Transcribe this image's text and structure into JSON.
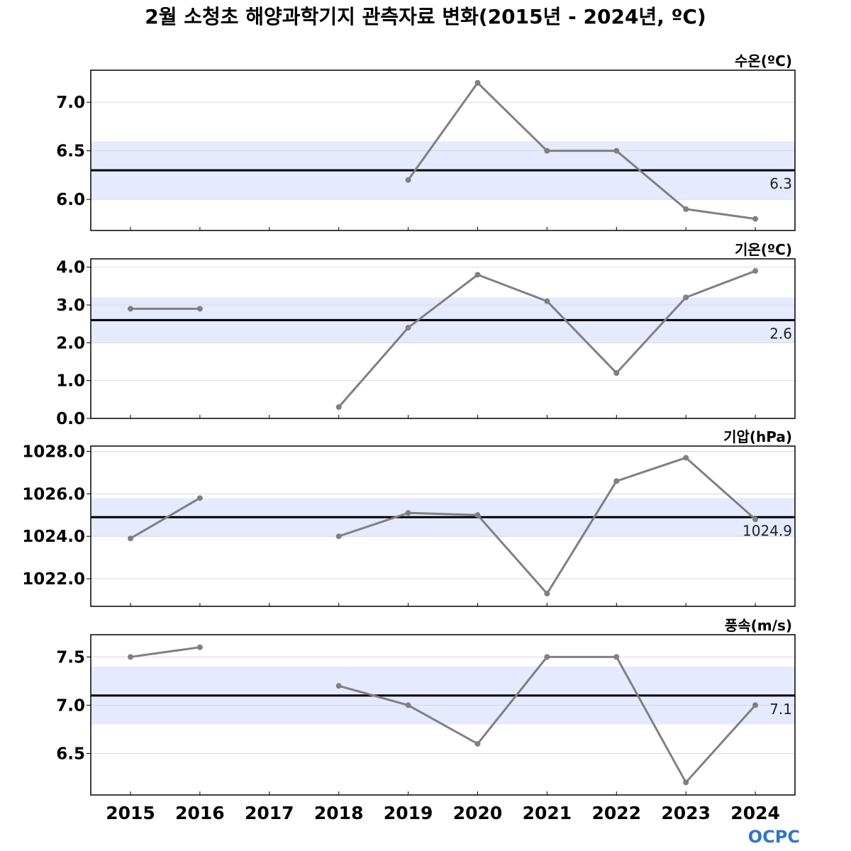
{
  "title": "2월 소청초 해양과학기지 관측자료 변화(2015년 - 2024년, ºC)",
  "logo": "OCPC",
  "colors": {
    "series_line": "#808080",
    "mean_line": "#000000",
    "band": "#e6eaff",
    "grid": "#d9d9d9"
  },
  "chart_data": [
    {
      "type": "line",
      "unit_label": "수온(ºC)",
      "x": [
        2015,
        2016,
        2017,
        2018,
        2019,
        2020,
        2021,
        2022,
        2023,
        2024
      ],
      "values": [
        null,
        null,
        null,
        null,
        6.2,
        7.2,
        6.5,
        6.5,
        5.9,
        5.8
      ],
      "mean": 6.3,
      "mean_label": "6.3",
      "band": [
        6.0,
        6.6
      ],
      "ylim": [
        5.68,
        7.33
      ],
      "yticks": [
        6.0,
        6.5,
        7.0
      ],
      "ytick_labels": [
        "6.0",
        "6.5",
        "7.0"
      ],
      "grid": true
    },
    {
      "type": "line",
      "unit_label": "기온(ºC)",
      "x": [
        2015,
        2016,
        2017,
        2018,
        2019,
        2020,
        2021,
        2022,
        2023,
        2024
      ],
      "values": [
        2.9,
        2.9,
        null,
        0.3,
        2.4,
        3.8,
        3.1,
        1.2,
        3.2,
        3.9
      ],
      "mean": 2.6,
      "mean_label": "2.6",
      "band": [
        2.0,
        3.2
      ],
      "ylim": [
        0.0,
        4.22
      ],
      "yticks": [
        0.0,
        1.0,
        2.0,
        3.0,
        4.0
      ],
      "ytick_labels": [
        "0.0",
        "1.0",
        "2.0",
        "3.0",
        "4.0"
      ],
      "grid": true
    },
    {
      "type": "line",
      "unit_label": "기압(hPa)",
      "x": [
        2015,
        2016,
        2017,
        2018,
        2019,
        2020,
        2021,
        2022,
        2023,
        2024
      ],
      "values": [
        1023.9,
        1025.8,
        null,
        1024.0,
        1025.1,
        1025.0,
        1021.3,
        1026.6,
        1027.7,
        1024.8
      ],
      "mean": 1024.9,
      "mean_label": "1024.9",
      "band": [
        1024.0,
        1025.8
      ],
      "ylim": [
        1020.7,
        1028.25
      ],
      "yticks": [
        1022.0,
        1024.0,
        1026.0,
        1028.0
      ],
      "ytick_labels": [
        "1022.0",
        "1024.0",
        "1026.0",
        "1028.0"
      ],
      "grid": true
    },
    {
      "type": "line",
      "unit_label": "풍속(m/s)",
      "x": [
        2015,
        2016,
        2017,
        2018,
        2019,
        2020,
        2021,
        2022,
        2023,
        2024
      ],
      "values": [
        7.5,
        7.6,
        null,
        7.2,
        7.0,
        6.6,
        7.5,
        7.5,
        6.2,
        7.0
      ],
      "mean": 7.1,
      "mean_label": "7.1",
      "band": [
        6.8,
        7.4
      ],
      "ylim": [
        6.07,
        7.73
      ],
      "yticks": [
        6.5,
        7.0,
        7.5
      ],
      "ytick_labels": [
        "6.5",
        "7.0",
        "7.5"
      ],
      "grid": true
    }
  ],
  "x_tick_labels": [
    "2015",
    "2016",
    "2017",
    "2018",
    "2019",
    "2020",
    "2021",
    "2022",
    "2023",
    "2024"
  ]
}
